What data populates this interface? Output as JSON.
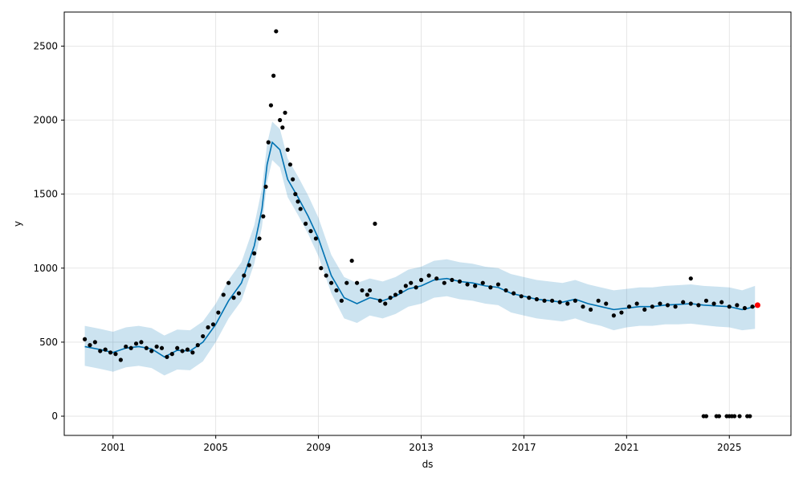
{
  "chart_data": {
    "type": "line",
    "title": "",
    "xlabel": "ds",
    "ylabel": "y",
    "xlim": [
      1999.1,
      2027.4
    ],
    "ylim": [
      -130,
      2730
    ],
    "x_ticks": [
      2001,
      2005,
      2009,
      2013,
      2017,
      2021,
      2025
    ],
    "x_tick_labels": [
      "2001",
      "2005",
      "2009",
      "2013",
      "2017",
      "2021",
      "2025"
    ],
    "y_ticks": [
      0,
      500,
      1000,
      1500,
      2000,
      2500
    ],
    "y_tick_labels": [
      "0",
      "500",
      "1000",
      "1500",
      "2000",
      "2500"
    ],
    "grid": true,
    "colors": {
      "forecast_line": "#0072B2",
      "uncertainty_band": "#0072B2",
      "observed_points": "#000000",
      "highlight_point": "#ff0000"
    },
    "forecast": {
      "x": [
        1999.9,
        2000.5,
        2001.0,
        2001.5,
        2002.0,
        2002.5,
        2003.0,
        2003.5,
        2004.0,
        2004.5,
        2005.0,
        2005.5,
        2006.0,
        2006.5,
        2006.8,
        2007.0,
        2007.2,
        2007.5,
        2007.8,
        2008.2,
        2008.6,
        2009.0,
        2009.5,
        2010.0,
        2010.5,
        2011.0,
        2011.5,
        2012.0,
        2012.5,
        2013.0,
        2013.5,
        2014.0,
        2014.5,
        2015.0,
        2015.5,
        2016.0,
        2016.5,
        2017.0,
        2017.5,
        2018.0,
        2018.5,
        2019.0,
        2019.5,
        2020.0,
        2020.5,
        2021.0,
        2021.5,
        2022.0,
        2022.5,
        2023.0,
        2023.5,
        2024.0,
        2024.5,
        2025.0,
        2025.5,
        2026.0
      ],
      "y": [
        470,
        450,
        430,
        460,
        470,
        455,
        400,
        445,
        440,
        500,
        620,
        780,
        900,
        1150,
        1400,
        1700,
        1850,
        1800,
        1600,
        1480,
        1350,
        1200,
        950,
        800,
        760,
        800,
        780,
        810,
        860,
        880,
        920,
        930,
        910,
        900,
        880,
        870,
        830,
        810,
        790,
        780,
        770,
        790,
        760,
        740,
        720,
        730,
        740,
        740,
        750,
        755,
        760,
        750,
        745,
        740,
        720,
        740
      ],
      "lower": [
        340,
        320,
        300,
        330,
        340,
        325,
        275,
        315,
        310,
        370,
        500,
        660,
        780,
        1030,
        1280,
        1580,
        1730,
        1680,
        1480,
        1360,
        1230,
        1080,
        830,
        660,
        630,
        680,
        660,
        690,
        740,
        760,
        800,
        810,
        790,
        780,
        760,
        750,
        700,
        680,
        660,
        650,
        640,
        660,
        630,
        610,
        580,
        600,
        610,
        610,
        620,
        620,
        625,
        615,
        605,
        600,
        580,
        590
      ],
      "upper": [
        610,
        590,
        570,
        600,
        610,
        595,
        545,
        585,
        580,
        640,
        760,
        920,
        1040,
        1290,
        1540,
        1840,
        1990,
        1940,
        1740,
        1620,
        1490,
        1340,
        1090,
        940,
        900,
        930,
        910,
        940,
        990,
        1010,
        1050,
        1060,
        1040,
        1030,
        1010,
        1000,
        960,
        940,
        920,
        910,
        900,
        920,
        890,
        870,
        850,
        860,
        870,
        870,
        880,
        885,
        890,
        880,
        875,
        870,
        850,
        880
      ]
    },
    "observed": {
      "x": [
        1999.9,
        2000.1,
        2000.3,
        2000.5,
        2000.7,
        2000.9,
        2001.1,
        2001.3,
        2001.5,
        2001.7,
        2001.9,
        2002.1,
        2002.3,
        2002.5,
        2002.7,
        2002.9,
        2003.1,
        2003.3,
        2003.5,
        2003.7,
        2003.9,
        2004.1,
        2004.3,
        2004.5,
        2004.7,
        2004.9,
        2005.1,
        2005.3,
        2005.5,
        2005.7,
        2005.9,
        2006.1,
        2006.3,
        2006.5,
        2006.7,
        2006.85,
        2006.95,
        2007.05,
        2007.15,
        2007.25,
        2007.35,
        2007.5,
        2007.6,
        2007.7,
        2007.8,
        2007.9,
        2008.0,
        2008.1,
        2008.2,
        2008.3,
        2008.5,
        2008.7,
        2008.9,
        2009.1,
        2009.3,
        2009.5,
        2009.7,
        2009.9,
        2010.1,
        2010.3,
        2010.5,
        2010.7,
        2010.9,
        2011.0,
        2011.2,
        2011.4,
        2011.6,
        2011.8,
        2012.0,
        2012.2,
        2012.4,
        2012.6,
        2012.8,
        2013.0,
        2013.3,
        2013.6,
        2013.9,
        2014.2,
        2014.5,
        2014.8,
        2015.1,
        2015.4,
        2015.7,
        2016.0,
        2016.3,
        2016.6,
        2016.9,
        2017.2,
        2017.5,
        2017.8,
        2018.1,
        2018.4,
        2018.7,
        2019.0,
        2019.3,
        2019.6,
        2019.9,
        2020.2,
        2020.5,
        2020.8,
        2021.1,
        2021.4,
        2021.7,
        2022.0,
        2022.3,
        2022.6,
        2022.9,
        2023.2,
        2023.5,
        2023.8,
        2024.1,
        2024.4,
        2024.7,
        2025.0,
        2025.3,
        2025.6,
        2025.9,
        2023.5,
        2024.0,
        2024.1,
        2024.5,
        2024.6,
        2024.9,
        2025.0,
        2025.1,
        2025.2,
        2025.4,
        2025.7,
        2025.8
      ],
      "y": [
        520,
        480,
        500,
        440,
        450,
        430,
        420,
        380,
        470,
        460,
        490,
        500,
        460,
        440,
        470,
        460,
        400,
        420,
        460,
        440,
        450,
        430,
        480,
        540,
        600,
        620,
        700,
        820,
        900,
        800,
        830,
        950,
        1020,
        1100,
        1200,
        1350,
        1550,
        1850,
        2100,
        2300,
        2600,
        2000,
        1950,
        2050,
        1800,
        1700,
        1600,
        1500,
        1450,
        1400,
        1300,
        1250,
        1200,
        1000,
        950,
        900,
        850,
        780,
        900,
        1050,
        900,
        850,
        820,
        850,
        1300,
        780,
        760,
        800,
        820,
        840,
        880,
        900,
        870,
        920,
        950,
        930,
        900,
        920,
        910,
        890,
        880,
        900,
        870,
        890,
        850,
        830,
        810,
        800,
        790,
        780,
        780,
        770,
        760,
        780,
        740,
        720,
        780,
        760,
        680,
        700,
        740,
        760,
        720,
        740,
        760,
        750,
        740,
        770,
        760,
        750,
        780,
        760,
        770,
        740,
        750,
        730,
        740,
        930,
        0,
        0,
        0,
        0,
        0,
        0,
        0,
        0,
        0,
        0,
        0
      ]
    },
    "highlight": {
      "x": 2026.1,
      "y": 750
    }
  }
}
